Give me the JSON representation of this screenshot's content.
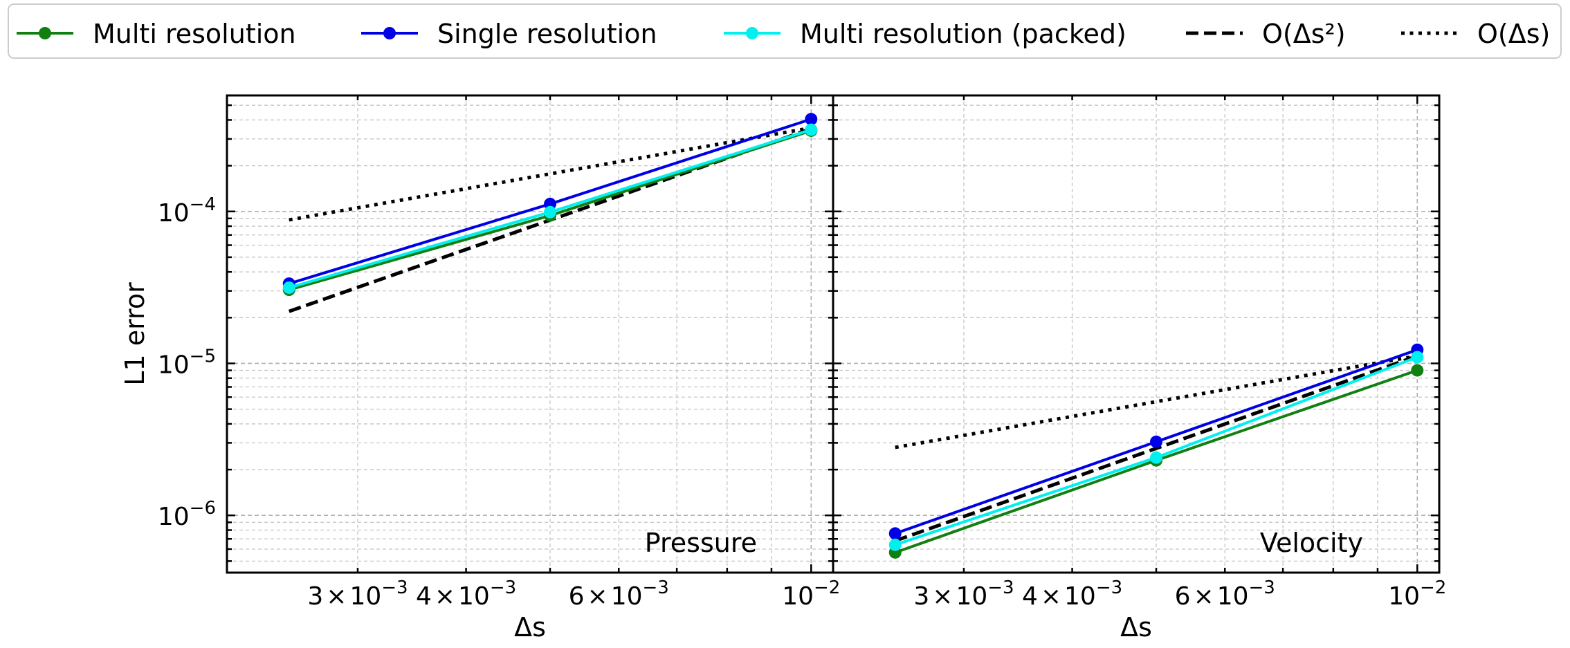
{
  "chart_data": [
    {
      "type": "line",
      "panel_label": "Pressure",
      "xscale": "log",
      "yscale": "log",
      "xlim": [
        0.00212,
        0.0106
      ],
      "ylim": [
        4.2e-07,
        0.00058
      ],
      "xlabel": "Δs",
      "ylabel": "L1 error",
      "grid": true,
      "x": [
        0.0025,
        0.005,
        0.01
      ],
      "series": [
        {
          "name": "Multi resolution",
          "values": [
            3.05e-05,
            9.4e-05,
            0.00034
          ]
        },
        {
          "name": "Single resolution",
          "values": [
            3.35e-05,
            0.000112,
            0.000405
          ]
        },
        {
          "name": "Multi resolution (packed)",
          "values": [
            3.15e-05,
            9.9e-05,
            0.000345
          ]
        }
      ],
      "reference_lines": [
        {
          "name": "O(Δs²)",
          "x": [
            0.0025,
            0.01
          ],
          "values": [
            2.2e-05,
            0.00035
          ]
        },
        {
          "name": "O(Δs)",
          "x": [
            0.0025,
            0.01
          ],
          "values": [
            8.8e-05,
            0.000355
          ]
        }
      ]
    },
    {
      "type": "line",
      "panel_label": "Velocity",
      "xscale": "log",
      "yscale": "log",
      "xlim": [
        0.00212,
        0.0106
      ],
      "ylim": [
        4.2e-07,
        0.00058
      ],
      "xlabel": "Δs",
      "ylabel": "",
      "grid": true,
      "x": [
        0.0025,
        0.005,
        0.01
      ],
      "series": [
        {
          "name": "Multi resolution",
          "values": [
            5.7e-07,
            2.3e-06,
            9e-06
          ]
        },
        {
          "name": "Single resolution",
          "values": [
            7.6e-07,
            3.05e-06,
            1.23e-05
          ]
        },
        {
          "name": "Multi resolution (packed)",
          "values": [
            6.4e-07,
            2.4e-06,
            1.1e-05
          ]
        }
      ],
      "reference_lines": [
        {
          "name": "O(Δs²)",
          "x": [
            0.0025,
            0.01
          ],
          "values": [
            6.8e-07,
            1.12e-05
          ]
        },
        {
          "name": "O(Δs)",
          "x": [
            0.0025,
            0.01
          ],
          "values": [
            2.8e-06,
            1.12e-05
          ]
        }
      ]
    }
  ],
  "colors": {
    "multi": "#117f11",
    "single": "#0000e6",
    "packed": "#00f0f0",
    "reference": "#000000"
  },
  "legend": {
    "placement": "top",
    "entries": [
      {
        "label": "Multi resolution",
        "style": "line-marker",
        "color": "#117f11"
      },
      {
        "label": "Single resolution",
        "style": "line-marker",
        "color": "#0000e6"
      },
      {
        "label": "Multi resolution (packed)",
        "style": "line-marker",
        "color": "#00f0f0"
      },
      {
        "label": "O(Δs²)",
        "style": "dashed",
        "color": "#000000"
      },
      {
        "label": "O(Δs)",
        "style": "dotted",
        "color": "#000000"
      }
    ]
  },
  "x_tick_labels": [
    {
      "value": 0.003,
      "mantissa": "3",
      "times": "×",
      "base": "10",
      "exp": "−3"
    },
    {
      "value": 0.004,
      "mantissa": "4",
      "times": "×",
      "base": "10",
      "exp": "−3"
    },
    {
      "value": 0.006,
      "mantissa": "6",
      "times": "×",
      "base": "10",
      "exp": "−3"
    },
    {
      "value": 0.01,
      "mantissa": "",
      "times": "",
      "base": "10",
      "exp": "−2"
    }
  ],
  "y_tick_labels": [
    {
      "value": 0.0001,
      "base": "10",
      "exp": "−4"
    },
    {
      "value": 1e-05,
      "base": "10",
      "exp": "−5"
    },
    {
      "value": 1e-06,
      "base": "10",
      "exp": "−6"
    }
  ]
}
